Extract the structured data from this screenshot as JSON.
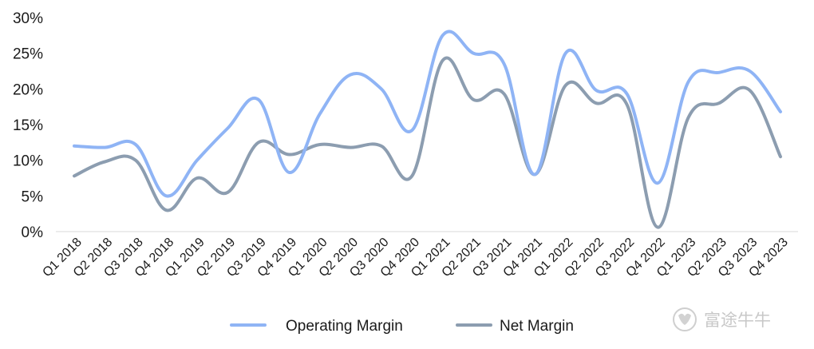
{
  "chart_data": {
    "type": "line",
    "categories": [
      "Q1 2018",
      "Q2 2018",
      "Q3 2018",
      "Q4 2018",
      "Q1 2019",
      "Q2 2019",
      "Q3 2019",
      "Q4 2019",
      "Q1 2020",
      "Q2 2020",
      "Q3 2020",
      "Q4 2020",
      "Q1 2021",
      "Q2 2021",
      "Q3 2021",
      "Q4 2021",
      "Q1 2022",
      "Q2 2022",
      "Q3 2022",
      "Q4 2022",
      "Q1 2023",
      "Q2 2023",
      "Q3 2023",
      "Q4 2023"
    ],
    "series": [
      {
        "name": "Operating Margin",
        "color": "#8fb4f5",
        "values": [
          12.0,
          11.8,
          12.2,
          5.0,
          10.0,
          14.5,
          18.5,
          8.3,
          16.5,
          22.0,
          20.0,
          14.2,
          27.5,
          25.0,
          23.5,
          8.0,
          25.0,
          19.8,
          19.3,
          6.8,
          21.0,
          22.3,
          22.5,
          16.8
        ]
      },
      {
        "name": "Net Margin",
        "color": "#8c9db0",
        "values": [
          7.8,
          9.8,
          10.0,
          3.0,
          7.5,
          5.5,
          12.5,
          10.8,
          12.2,
          11.8,
          12.0,
          7.8,
          24.0,
          18.5,
          19.3,
          8.0,
          20.5,
          18.0,
          17.8,
          0.6,
          16.0,
          18.0,
          19.8,
          10.5
        ]
      }
    ],
    "y_ticks": [
      "0%",
      "5%",
      "10%",
      "15%",
      "20%",
      "25%",
      "30%"
    ],
    "ylim": [
      0,
      30
    ],
    "grid": false,
    "legend_position": "bottom-center"
  },
  "watermark": {
    "text": "富途牛牛",
    "icon": "futu-bull-logo-icon"
  }
}
